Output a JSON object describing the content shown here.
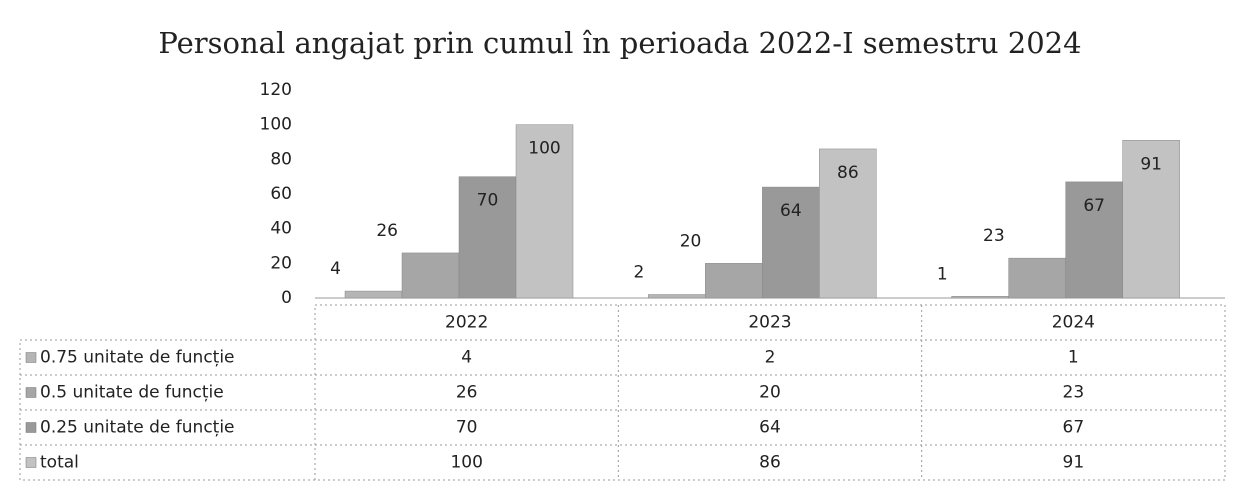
{
  "chart_data": {
    "type": "bar",
    "title": "Personal angajat prin cumul în perioada 2022-I semestru 2024",
    "categories": [
      "2022",
      "2023",
      "2024"
    ],
    "series": [
      {
        "name": "0.75 unitate de funcție",
        "color": "#b5b5b5",
        "values": [
          4,
          2,
          1
        ]
      },
      {
        "name": "0.5 unitate de funcție",
        "color": "#a6a6a6",
        "values": [
          26,
          20,
          23
        ]
      },
      {
        "name": "0.25 unitate de funcție",
        "color": "#999999",
        "values": [
          70,
          64,
          67
        ]
      },
      {
        "name": "total",
        "color": "#c2c2c2",
        "values": [
          100,
          86,
          91
        ]
      }
    ],
    "ylim": [
      0,
      120
    ],
    "yticks": [
      0,
      20,
      40,
      60,
      80,
      100,
      120
    ],
    "grid": false
  }
}
